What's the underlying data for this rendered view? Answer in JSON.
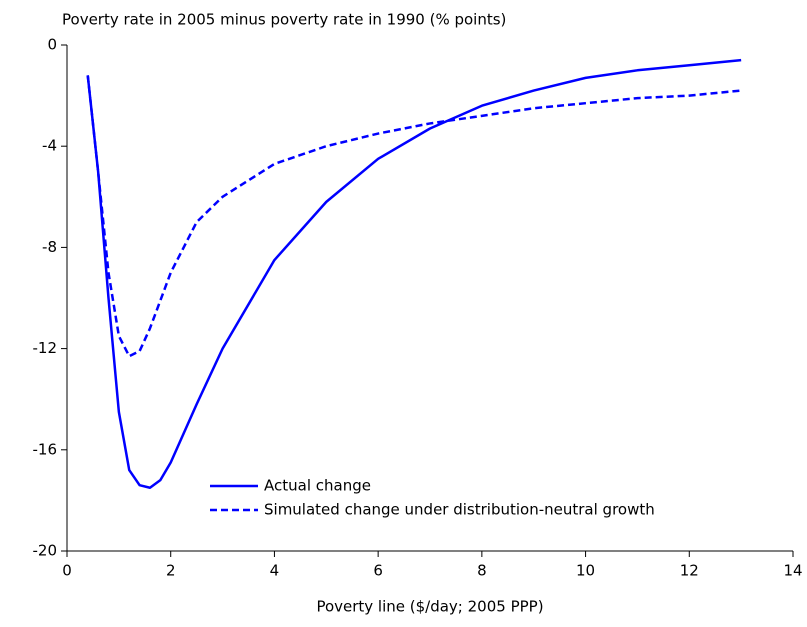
{
  "chart_data": {
    "type": "line",
    "title": "Poverty rate in 2005 minus poverty rate in 1990 (% points)",
    "x_label": "Poverty line ($/day; 2005 PPP)",
    "x": [
      0.4,
      0.6,
      0.8,
      1.0,
      1.2,
      1.4,
      1.6,
      1.8,
      2.0,
      2.5,
      3,
      4,
      5,
      6,
      7,
      8,
      9,
      10,
      11,
      12,
      13
    ],
    "series": [
      {
        "name": "Actual change",
        "color": "#0000ff",
        "dashed": false,
        "values": [
          -1.2,
          -5,
          -10,
          -14.5,
          -16.8,
          -17.4,
          -17.5,
          -17.2,
          -16.5,
          -14.2,
          -12,
          -8.5,
          -6.2,
          -4.5,
          -3.3,
          -2.4,
          -1.8,
          -1.3,
          -1.0,
          -0.8,
          -0.6
        ]
      },
      {
        "name": "Simulated change under distribution-neutral growth",
        "color": "#0000ff",
        "dashed": true,
        "values": [
          -1.2,
          -5,
          -9,
          -11.5,
          -12.3,
          -12.1,
          -11.2,
          -10.1,
          -9,
          -7,
          -6,
          -4.7,
          -4,
          -3.5,
          -3.1,
          -2.8,
          -2.5,
          -2.3,
          -2.1,
          -2.0,
          -1.8
        ]
      }
    ],
    "xlim": [
      0,
      14
    ],
    "xticks": [
      0,
      2,
      4,
      6,
      8,
      10,
      12,
      14
    ],
    "ylim": [
      -20,
      0
    ],
    "yticks": [
      0,
      -4,
      -8,
      -12,
      -16,
      -20
    ],
    "grid": false,
    "legend": "bottom"
  }
}
